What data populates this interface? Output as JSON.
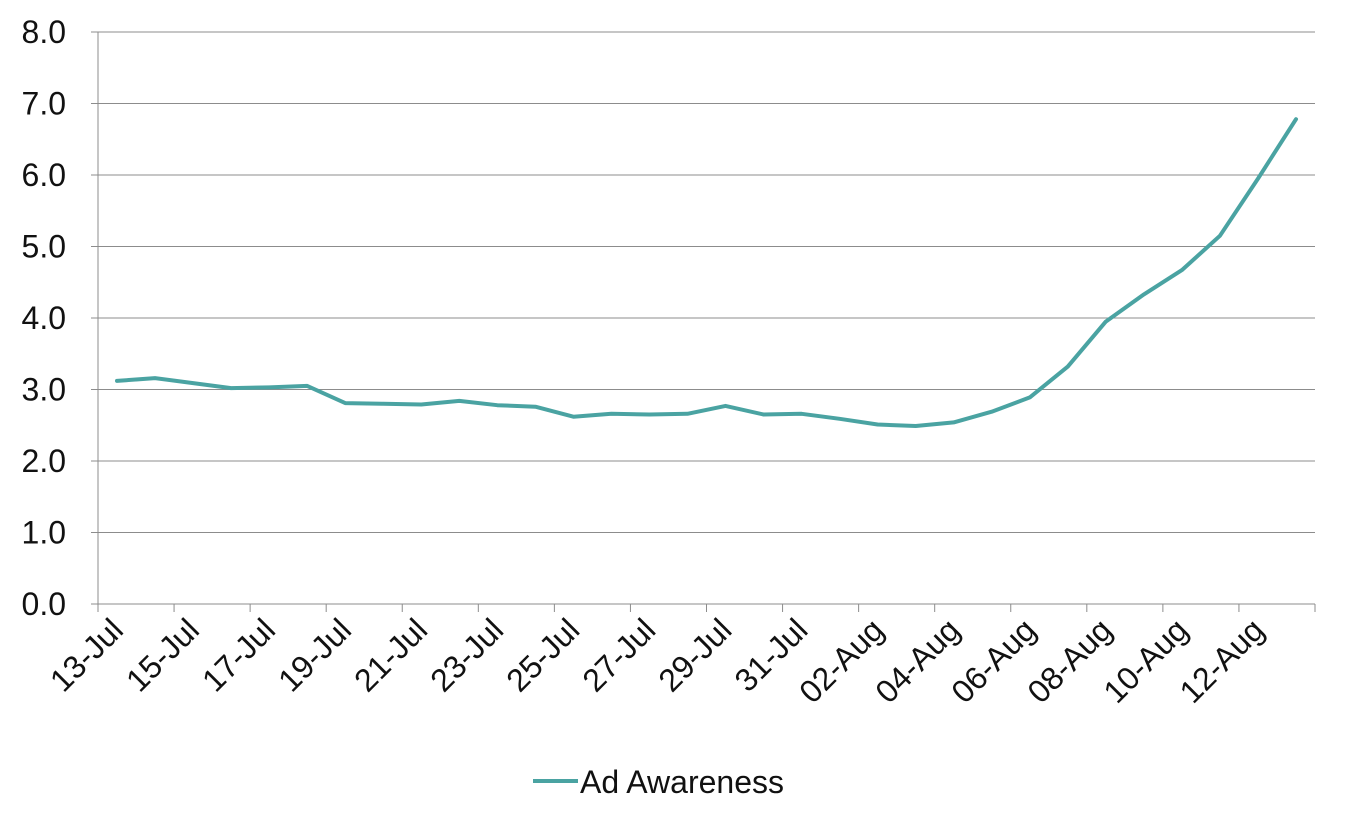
{
  "chart_data": {
    "type": "line",
    "x": [
      "13-Jul",
      "14-Jul",
      "15-Jul",
      "16-Jul",
      "17-Jul",
      "18-Jul",
      "19-Jul",
      "20-Jul",
      "21-Jul",
      "22-Jul",
      "23-Jul",
      "24-Jul",
      "25-Jul",
      "26-Jul",
      "27-Jul",
      "28-Jul",
      "29-Jul",
      "30-Jul",
      "31-Jul",
      "01-Aug",
      "02-Aug",
      "03-Aug",
      "04-Aug",
      "05-Aug",
      "06-Aug",
      "07-Aug",
      "08-Aug",
      "09-Aug",
      "10-Aug",
      "11-Aug",
      "12-Aug",
      "13-Aug"
    ],
    "x_tick_labels": [
      "13-Jul",
      "15-Jul",
      "17-Jul",
      "19-Jul",
      "21-Jul",
      "23-Jul",
      "25-Jul",
      "27-Jul",
      "29-Jul",
      "31-Jul",
      "02-Aug",
      "04-Aug",
      "06-Aug",
      "08-Aug",
      "10-Aug",
      "12-Aug"
    ],
    "y_tick_labels": [
      "0.0",
      "1.0",
      "2.0",
      "3.0",
      "4.0",
      "5.0",
      "6.0",
      "7.0",
      "8.0"
    ],
    "series": [
      {
        "name": "Ad Awareness",
        "color": "#4AA3A2",
        "values": [
          3.12,
          3.16,
          3.09,
          3.02,
          3.03,
          3.05,
          2.81,
          2.8,
          2.79,
          2.84,
          2.78,
          2.76,
          2.62,
          2.66,
          2.65,
          2.66,
          2.77,
          2.65,
          2.66,
          2.59,
          2.51,
          2.49,
          2.54,
          2.69,
          2.89,
          3.32,
          3.95,
          4.33,
          4.67,
          5.15,
          5.95,
          6.78
        ]
      }
    ],
    "ylim": [
      0,
      8
    ],
    "grid": true,
    "legend": "bottom-center",
    "xlabel": "",
    "ylabel": ""
  }
}
